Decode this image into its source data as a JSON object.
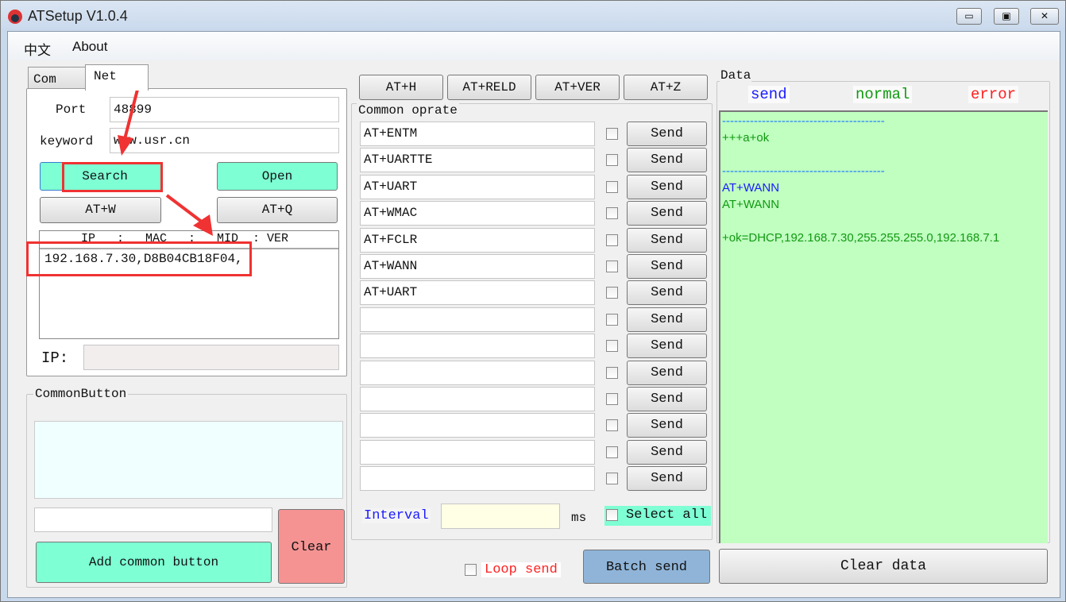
{
  "window": {
    "title": "ATSetup V1.0.4",
    "minimize": "▭",
    "maximize": "▣",
    "close": "✕"
  },
  "menu": [
    "中文",
    "About"
  ],
  "tabs": [
    {
      "label": "Com",
      "active": false
    },
    {
      "label": "Net",
      "active": true
    }
  ],
  "net": {
    "port_label": "Port",
    "port_value": "48899",
    "keyword_label": "keyword",
    "keyword_value": "www.usr.cn",
    "search": "Search",
    "open": "Open",
    "at_w": "AT+W",
    "at_q": "AT+Q",
    "list_header": "IP   :   MAC   :   MID  : VER",
    "list_items": [
      "192.168.7.30,D8B04CB18F04,"
    ],
    "ip_label": "IP:",
    "ip_value": ""
  },
  "common_button": {
    "title": "CommonButton",
    "input_value": "",
    "add": "Add common button",
    "clear": "Clear"
  },
  "top_buttons": [
    "AT+H",
    "AT+RELD",
    "AT+VER",
    "AT+Z"
  ],
  "common_oprate": {
    "title": "Common oprate",
    "send_label": "Send",
    "commands": [
      "AT+ENTM",
      "AT+UARTTE",
      "AT+UART",
      "AT+WMAC",
      "AT+FCLR",
      "AT+WANN",
      "AT+UART",
      "",
      "",
      "",
      "",
      "",
      "",
      ""
    ],
    "interval_label": "Interval",
    "interval_value": "",
    "ms": "ms",
    "select_all": "Select all",
    "loop_send": "Loop send",
    "batch_send": "Batch send"
  },
  "data": {
    "title": "Data",
    "legend": [
      {
        "label": "send",
        "color": "#1a1aff"
      },
      {
        "label": "normal",
        "color": "#119911"
      },
      {
        "label": "error",
        "color": "#ff2020"
      }
    ],
    "lines": [
      {
        "text": "-----------------------------------------",
        "color": "#1a7aff"
      },
      {
        "text": "+++a+ok",
        "color": "#119911"
      },
      {
        "text": "",
        "color": "#119911"
      },
      {
        "text": "-----------------------------------------",
        "color": "#1a7aff"
      },
      {
        "text": "AT+WANN",
        "color": "#1a1aff"
      },
      {
        "text": "AT+WANN",
        "color": "#119911"
      },
      {
        "text": "",
        "color": "#119911"
      },
      {
        "text": "+ok=DHCP,192.168.7.30,255.255.255.0,192.168.7.1",
        "color": "#119911"
      }
    ],
    "clear": "Clear data",
    "background": "#c0ffc0"
  },
  "colors": {
    "accent_button": "#7effd4",
    "annotation": "#f03232"
  }
}
